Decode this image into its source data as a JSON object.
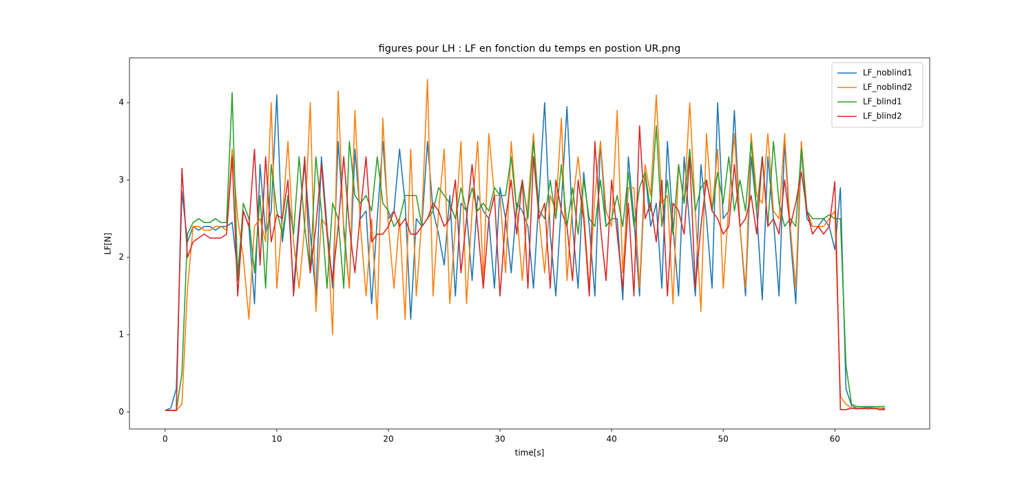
{
  "chart_data": {
    "type": "line",
    "title": "figures pour LH : LF en fonction du temps en postion UR.png",
    "xlabel": "time[s]",
    "ylabel": "LF[N]",
    "x": [
      0,
      0.5,
      1,
      1.5,
      2,
      2.5,
      3,
      3.5,
      4,
      4.5,
      5,
      5.5,
      6,
      6.5,
      7,
      7.5,
      8,
      8.5,
      9,
      9.5,
      10,
      10.5,
      11,
      11.5,
      12,
      12.5,
      13,
      13.5,
      14,
      14.5,
      15,
      15.5,
      16,
      16.5,
      17,
      17.5,
      18,
      18.5,
      19,
      19.5,
      20,
      20.5,
      21,
      21.5,
      22,
      22.5,
      23,
      23.5,
      24,
      24.5,
      25,
      25.5,
      26,
      26.5,
      27,
      27.5,
      28,
      28.5,
      29,
      29.5,
      30,
      30.5,
      31,
      31.5,
      32,
      32.5,
      33,
      33.5,
      34,
      34.5,
      35,
      35.5,
      36,
      36.5,
      37,
      37.5,
      38,
      38.5,
      39,
      39.5,
      40,
      40.5,
      41,
      41.5,
      42,
      42.5,
      43,
      43.5,
      44,
      44.5,
      45,
      45.5,
      46,
      46.5,
      47,
      47.5,
      48,
      48.5,
      49,
      49.5,
      50,
      50.5,
      51,
      51.5,
      52,
      52.5,
      53,
      53.5,
      54,
      54.5,
      55,
      55.5,
      56,
      56.5,
      57,
      57.5,
      58,
      58.5,
      59,
      59.5,
      60,
      60.5,
      61,
      61.5,
      62,
      62.5,
      63,
      63.5,
      64,
      64.5
    ],
    "series": [
      {
        "name": "LF_noblind1",
        "color": "#1f77b4",
        "values": [
          0.02,
          0.05,
          0.3,
          2.85,
          2.2,
          2.4,
          2.35,
          2.4,
          2.4,
          2.35,
          2.4,
          2.4,
          2.45,
          1.8,
          2.6,
          2.4,
          1.4,
          3.2,
          2.3,
          2.6,
          4.1,
          2.2,
          2.8,
          1.6,
          2.5,
          3.2,
          2.3,
          1.5,
          3.3,
          2.4,
          1.6,
          3.5,
          2.4,
          1.6,
          3.4,
          2.5,
          2.6,
          1.4,
          2.5,
          3.5,
          2.5,
          2.6,
          3.4,
          2.7,
          1.2,
          2.5,
          2.4,
          3.5,
          2.6,
          2.3,
          1.9,
          2.8,
          1.5,
          2.7,
          2.6,
          1.7,
          2.8,
          2.6,
          2.5,
          1.6,
          2.9,
          2.5,
          1.8,
          2.7,
          2.6,
          2.4,
          1.6,
          2.8,
          4.0,
          2.3,
          1.5,
          2.7,
          3.95,
          2.4,
          1.6,
          3.1,
          2.4,
          1.5,
          3.5,
          2.4,
          2.5,
          2.5,
          1.45,
          3.3,
          2.5,
          1.5,
          3.1,
          2.4,
          2.7,
          1.6,
          3.5,
          2.4,
          1.5,
          3.3,
          2.4,
          1.5,
          3.2,
          2.5,
          1.6,
          4.0,
          2.5,
          2.6,
          3.9,
          2.4,
          1.5,
          3.3,
          2.6,
          1.45,
          3.3,
          2.5,
          1.5,
          3.5,
          2.3,
          1.4,
          3.4,
          2.5,
          2.4,
          2.4,
          2.5,
          2.4,
          2.1,
          2.9,
          0.3,
          0.08,
          0.05,
          0.05,
          0.06,
          0.05,
          0.05,
          0.04
        ]
      },
      {
        "name": "LF_noblind2",
        "color": "#ff7f0e",
        "values": [
          0.02,
          0.02,
          0.02,
          0.1,
          1.6,
          2.4,
          2.4,
          2.35,
          2.35,
          2.4,
          2.4,
          2.35,
          3.4,
          2.5,
          2.0,
          1.2,
          2.4,
          2.5,
          2.2,
          4.0,
          1.6,
          2.5,
          3.5,
          2.2,
          1.6,
          2.4,
          4.0,
          1.3,
          2.5,
          2.4,
          1.0,
          4.15,
          2.3,
          1.6,
          3.9,
          2.4,
          1.5,
          2.5,
          1.2,
          3.8,
          2.4,
          1.6,
          2.5,
          1.2,
          3.4,
          1.5,
          2.5,
          4.3,
          1.5,
          2.6,
          3.4,
          1.4,
          2.4,
          3.5,
          1.4,
          2.6,
          3.5,
          1.7,
          3.6,
          2.8,
          2.8,
          1.8,
          3.5,
          2.6,
          1.7,
          2.7,
          3.6,
          2.5,
          1.8,
          2.8,
          2.6,
          3.8,
          1.7,
          2.7,
          3.3,
          2.6,
          1.6,
          2.8,
          3.5,
          2.6,
          2.4,
          3.9,
          1.8,
          2.9,
          2.9,
          1.6,
          3.2,
          2.8,
          4.1,
          2.7,
          2.8,
          1.4,
          3.2,
          2.7,
          4.0,
          2.6,
          1.3,
          3.6,
          2.6,
          3.4,
          1.6,
          2.7,
          3.6,
          2.4,
          1.6,
          3.6,
          2.8,
          2.7,
          3.6,
          2.6,
          2.5,
          3.6,
          2.4,
          1.6,
          3.5,
          2.6,
          2.4,
          2.4,
          2.4,
          2.5,
          2.6,
          0.2,
          0.1,
          0.05,
          0.05,
          0.04,
          0.05,
          0.04,
          0.05,
          0.05
        ]
      },
      {
        "name": "LF_blind1",
        "color": "#2ca02c",
        "values": [
          0.02,
          0.02,
          0.02,
          0.5,
          2.3,
          2.45,
          2.5,
          2.45,
          2.45,
          2.5,
          2.45,
          2.45,
          4.13,
          1.7,
          2.7,
          2.5,
          1.8,
          2.8,
          1.6,
          3.2,
          2.6,
          2.3,
          2.8,
          2.3,
          3.3,
          2.4,
          1.8,
          3.3,
          2.6,
          1.6,
          2.7,
          2.5,
          1.6,
          3.5,
          2.8,
          2.7,
          2.8,
          2.6,
          3.3,
          2.7,
          2.6,
          2.4,
          2.5,
          2.8,
          2.8,
          2.8,
          2.4,
          2.5,
          2.6,
          2.9,
          2.8,
          2.7,
          2.5,
          2.9,
          2.6,
          2.9,
          2.6,
          2.7,
          2.6,
          2.9,
          2.8,
          2.8,
          3.3,
          2.6,
          3.0,
          2.5,
          3.5,
          2.6,
          2.5,
          3.0,
          2.5,
          3.2,
          2.4,
          2.9,
          2.3,
          3.0,
          2.5,
          2.4,
          3.0,
          2.4,
          2.5,
          2.8,
          2.4,
          3.1,
          2.4,
          2.9,
          3.1,
          2.6,
          3.7,
          2.4,
          3.0,
          2.3,
          3.2,
          2.7,
          3.4,
          2.6,
          2.9,
          3.0,
          2.6,
          3.1,
          2.7,
          3.3,
          2.6,
          3.0,
          2.6,
          3.5,
          2.6,
          3.3,
          2.4,
          3.5,
          2.7,
          2.4,
          2.5,
          2.4,
          3.4,
          2.6,
          2.5,
          2.5,
          2.5,
          2.55,
          2.5,
          2.5,
          0.6,
          0.1,
          0.07,
          0.07,
          0.07,
          0.07,
          0.07,
          0.07
        ]
      },
      {
        "name": "LF_blind2",
        "color": "#d62728",
        "values": [
          0.02,
          0.02,
          0.02,
          3.15,
          2.0,
          2.2,
          2.25,
          2.3,
          2.25,
          2.25,
          2.25,
          2.3,
          3.3,
          1.5,
          2.6,
          2.4,
          3.4,
          1.9,
          3.3,
          2.2,
          2.55,
          2.5,
          3.0,
          1.5,
          2.4,
          3.3,
          1.8,
          2.4,
          3.2,
          2.3,
          1.7,
          2.4,
          3.3,
          2.4,
          1.8,
          2.6,
          3.3,
          2.2,
          2.3,
          2.3,
          2.4,
          2.6,
          2.4,
          2.5,
          2.3,
          2.3,
          2.4,
          2.5,
          2.7,
          2.6,
          2.4,
          2.5,
          3.0,
          1.8,
          2.5,
          3.2,
          2.4,
          1.6,
          2.5,
          2.8,
          1.5,
          2.5,
          3.0,
          2.3,
          3.0,
          1.6,
          3.3,
          2.5,
          2.7,
          1.6,
          3.0,
          2.6,
          2.4,
          1.7,
          3.0,
          2.5,
          1.5,
          3.5,
          2.4,
          1.7,
          3.0,
          2.3,
          1.6,
          2.7,
          1.5,
          3.7,
          2.5,
          2.7,
          2.2,
          3.0,
          1.5,
          2.7,
          2.6,
          2.3,
          3.3,
          1.6,
          2.4,
          3.0,
          2.6,
          2.5,
          2.3,
          2.4,
          3.2,
          2.4,
          2.5,
          2.8,
          2.3,
          3.3,
          2.4,
          2.5,
          2.3,
          3.0,
          2.4,
          2.7,
          3.1,
          2.6,
          2.3,
          2.4,
          2.3,
          2.4,
          2.98,
          0.03,
          0.03,
          0.05,
          0.04,
          0.05,
          0.04,
          0.05,
          0.03,
          0.03
        ]
      }
    ],
    "xlim": [
      -3.2,
      68.5
    ],
    "ylim": [
      -0.22,
      4.58
    ],
    "xticks": [
      0,
      10,
      20,
      30,
      40,
      50,
      60
    ],
    "yticks": [
      0,
      1,
      2,
      3,
      4
    ],
    "legend": "upper right",
    "grid": false
  }
}
